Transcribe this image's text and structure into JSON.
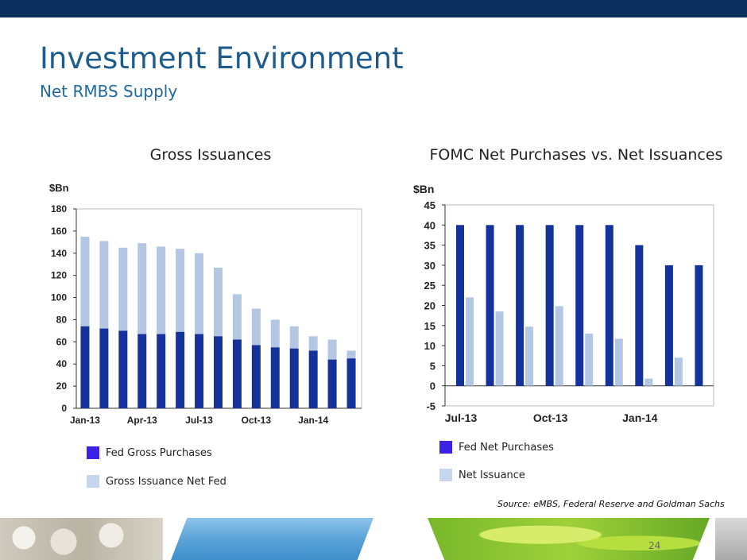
{
  "header": {
    "title": "Investment Environment",
    "subtitle": "Net RMBS Supply"
  },
  "colors": {
    "header_bar": "#0b2e5e",
    "dark_series": "#13329c",
    "light_series": "#b3c6e4",
    "legend_dark": "#3b22e6",
    "legend_light": "#c5d6ee"
  },
  "chart_data": [
    {
      "type": "bar",
      "stacked": true,
      "title": "Gross Issuances",
      "unit_label": "$Bn",
      "categories": [
        "Jan-13",
        "Feb-13",
        "Mar-13",
        "Apr-13",
        "May-13",
        "Jun-13",
        "Jul-13",
        "Aug-13",
        "Sep-13",
        "Oct-13",
        "Nov-13",
        "Dec-13",
        "Jan-14",
        "Feb-14",
        "Mar-14"
      ],
      "x_tick_labels": [
        "Jan-13",
        "Apr-13",
        "Jul-13",
        "Oct-13",
        "Jan-14"
      ],
      "series": [
        {
          "name": "Fed Gross Purchases",
          "values": [
            74,
            72,
            70,
            67,
            67,
            69,
            67,
            65,
            62,
            57,
            55,
            54,
            52,
            44,
            45
          ]
        },
        {
          "name": "Gross Issuance Net Fed",
          "values": [
            81,
            79,
            75,
            82,
            79,
            75,
            73,
            62,
            41,
            33,
            25,
            20,
            13,
            18,
            7
          ]
        }
      ],
      "ylim": [
        0,
        180
      ],
      "yticks": [
        0,
        20,
        40,
        60,
        80,
        100,
        120,
        140,
        160,
        180
      ],
      "xlabel": "",
      "ylabel": "$Bn",
      "legend": [
        "Fed Gross Purchases",
        "Gross Issuance Net Fed"
      ]
    },
    {
      "type": "bar",
      "stacked": false,
      "title": "FOMC Net Purchases vs. Net Issuances",
      "unit_label": "$Bn",
      "categories": [
        "Jul-13",
        "Aug-13",
        "Sep-13",
        "Oct-13",
        "Nov-13",
        "Dec-13",
        "Jan-14",
        "Feb-14",
        "Mar-14"
      ],
      "x_tick_labels": [
        "Jul-13",
        "Oct-13",
        "Jan-14"
      ],
      "series": [
        {
          "name": "Fed Net Purchases",
          "values": [
            40,
            40,
            40,
            40,
            40,
            40,
            35,
            30,
            30
          ]
        },
        {
          "name": "Net Issuance",
          "values": [
            22,
            18.5,
            14.7,
            19.8,
            13,
            11.7,
            1.8,
            7,
            null
          ]
        }
      ],
      "ylim": [
        -5,
        45
      ],
      "yticks": [
        -5,
        0,
        5,
        10,
        15,
        20,
        25,
        30,
        35,
        40,
        45
      ],
      "xlabel": "",
      "ylabel": "$Bn",
      "legend": [
        "Fed Net Purchases",
        "Net Issuance"
      ]
    }
  ],
  "source": "Source: eMBS, Federal Reserve and Goldman Sachs",
  "page_number": "24"
}
